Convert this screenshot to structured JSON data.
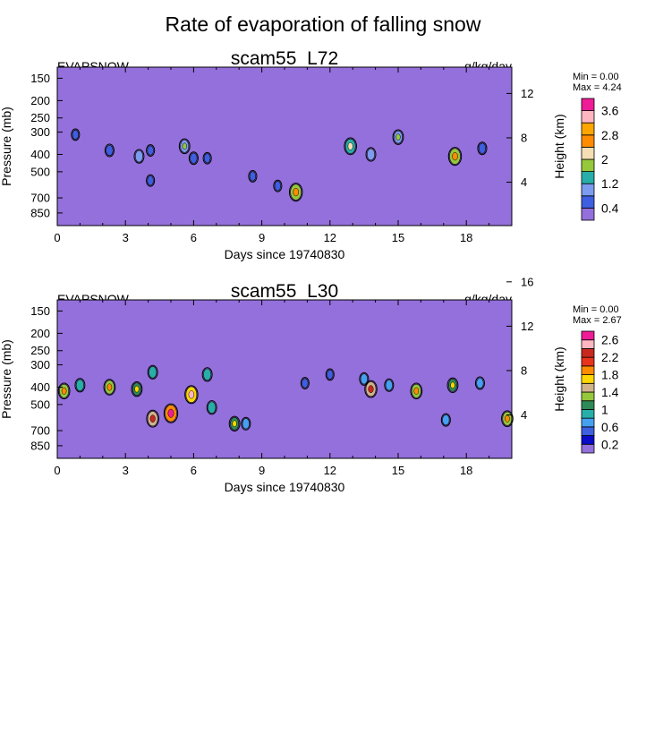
{
  "title": "Rate of evaporation of falling snow",
  "chart_data": [
    {
      "type": "heatmap",
      "variable": "EVAPSNOW",
      "title": "scam55_L72",
      "units": "g/kg/day",
      "xlabel": "Days since 19740830",
      "ylabel": "Pressure (mb)",
      "y2label": "Height (km)",
      "xlim": [
        0,
        20
      ],
      "x_ticks": [
        0,
        3,
        6,
        9,
        12,
        15,
        18
      ],
      "y_ticks": [
        150,
        200,
        250,
        300,
        400,
        500,
        700,
        850
      ],
      "y2_ticks": [
        4,
        8,
        12
      ],
      "min_label": "Min =   0.00",
      "max_label": "Max =   4.24",
      "colorbar_labels": [
        "0.4",
        "1.2",
        "2",
        "2.8",
        "3.6"
      ],
      "colorbar_colors": [
        "#9370DB",
        "#3D5FE0",
        "#7D9BEF",
        "#28AEA8",
        "#96C83C",
        "#F5DEB3",
        "#FF8C00",
        "#FFA500",
        "#FFB6C1",
        "#EE1C96"
      ],
      "background_color": "#9370DB",
      "features": [
        {
          "day": 0.8,
          "p": 310,
          "value": 0.4
        },
        {
          "day": 2.3,
          "p": 380,
          "value": 0.6
        },
        {
          "day": 3.6,
          "p": 410,
          "value": 0.8
        },
        {
          "day": 4.1,
          "p": 380,
          "value": 0.4
        },
        {
          "day": 4.1,
          "p": 560,
          "value": 0.4
        },
        {
          "day": 5.6,
          "p": 360,
          "value": 1.0
        },
        {
          "day": 6.0,
          "p": 420,
          "value": 0.6
        },
        {
          "day": 6.6,
          "p": 420,
          "value": 0.4
        },
        {
          "day": 8.6,
          "p": 530,
          "value": 0.4
        },
        {
          "day": 9.7,
          "p": 600,
          "value": 0.4
        },
        {
          "day": 10.5,
          "p": 650,
          "value": 1.6
        },
        {
          "day": 12.9,
          "p": 360,
          "value": 1.4
        },
        {
          "day": 13.8,
          "p": 400,
          "value": 0.8
        },
        {
          "day": 15.0,
          "p": 320,
          "value": 1.0
        },
        {
          "day": 17.5,
          "p": 410,
          "value": 1.6
        },
        {
          "day": 18.7,
          "p": 370,
          "value": 0.6
        }
      ]
    },
    {
      "type": "heatmap",
      "variable": "EVAPSNOW",
      "title": "scam55_L30",
      "units": "g/kg/day",
      "xlabel": "Days since 19740830",
      "ylabel": "Pressure (mb)",
      "y2label": "Height (km)",
      "xlim": [
        0,
        20
      ],
      "x_ticks": [
        0,
        3,
        6,
        9,
        12,
        15,
        18
      ],
      "y_ticks": [
        150,
        200,
        250,
        300,
        400,
        500,
        700,
        850
      ],
      "y2_ticks": [
        4,
        8,
        12,
        16
      ],
      "min_label": "Min =   0.00",
      "max_label": "Max =   2.67",
      "colorbar_labels": [
        "0.2",
        "0.6",
        "1",
        "1.4",
        "1.8",
        "2.2",
        "2.6"
      ],
      "colorbar_colors": [
        "#9370DB",
        "#0A0AC8",
        "#3D5FE0",
        "#46A0F0",
        "#28AEA8",
        "#2E8B57",
        "#96C83C",
        "#D2B48C",
        "#FFD700",
        "#FF8C00",
        "#E8341C",
        "#C8281E",
        "#FFB6C1",
        "#EE1C96"
      ],
      "background_color": "#9370DB",
      "features": [
        {
          "day": 0.3,
          "p": 420,
          "value": 1.2
        },
        {
          "day": 1.0,
          "p": 390,
          "value": 0.8
        },
        {
          "day": 2.3,
          "p": 400,
          "value": 1.2
        },
        {
          "day": 3.5,
          "p": 410,
          "value": 1.0
        },
        {
          "day": 4.2,
          "p": 330,
          "value": 0.8
        },
        {
          "day": 4.2,
          "p": 600,
          "value": 1.4
        },
        {
          "day": 5.0,
          "p": 560,
          "value": 1.8
        },
        {
          "day": 5.9,
          "p": 440,
          "value": 1.6
        },
        {
          "day": 6.6,
          "p": 340,
          "value": 0.8
        },
        {
          "day": 6.8,
          "p": 520,
          "value": 0.8
        },
        {
          "day": 7.8,
          "p": 640,
          "value": 1.0
        },
        {
          "day": 8.3,
          "p": 640,
          "value": 0.6
        },
        {
          "day": 10.9,
          "p": 380,
          "value": 0.4
        },
        {
          "day": 12.0,
          "p": 340,
          "value": 0.4
        },
        {
          "day": 13.5,
          "p": 360,
          "value": 0.6
        },
        {
          "day": 13.8,
          "p": 410,
          "value": 1.4
        },
        {
          "day": 14.6,
          "p": 390,
          "value": 0.6
        },
        {
          "day": 15.8,
          "p": 420,
          "value": 1.2
        },
        {
          "day": 17.1,
          "p": 610,
          "value": 0.6
        },
        {
          "day": 17.4,
          "p": 390,
          "value": 1.0
        },
        {
          "day": 18.6,
          "p": 380,
          "value": 0.6
        },
        {
          "day": 19.8,
          "p": 600,
          "value": 1.2
        }
      ]
    }
  ]
}
